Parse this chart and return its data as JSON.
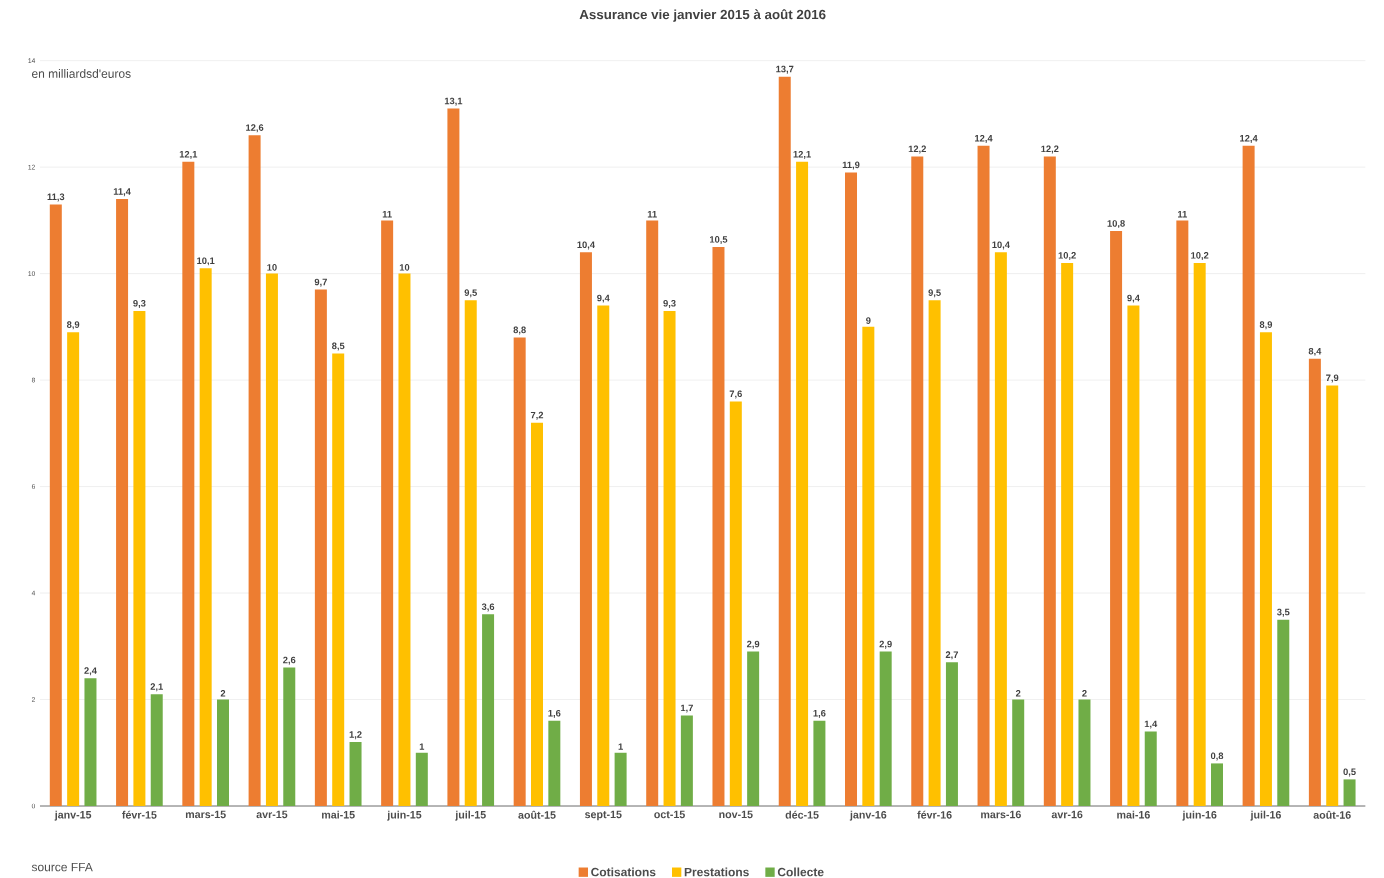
{
  "chart_data": {
    "type": "bar",
    "title": "Assurance vie janvier 2015  à août 2016",
    "annotations": [
      "en milliardsd'euros",
      "source FFA"
    ],
    "categories": [
      "janv-15",
      "févr-15",
      "mars-15",
      "avr-15",
      "mai-15",
      "juin-15",
      "juil-15",
      "août-15",
      "sept-15",
      "oct-15",
      "nov-15",
      "déc-15",
      "janv-16",
      "févr-16",
      "mars-16",
      "avr-16",
      "mai-16",
      "juin-16",
      "juil-16",
      "août-16"
    ],
    "series": [
      {
        "name": "Cotisations",
        "color": "#ed7d31",
        "values": [
          11.3,
          11.4,
          12.1,
          12.6,
          9.7,
          11,
          13.1,
          8.8,
          10.4,
          11,
          10.5,
          13.7,
          11.9,
          12.2,
          12.4,
          12.2,
          10.8,
          11,
          12.4,
          8.4
        ],
        "value_labels": [
          "11,3",
          "11,4",
          "12,1",
          "12,6",
          "9,7",
          "11",
          "13,1",
          "8,8",
          "10,4",
          "11",
          "10,5",
          "13,7",
          "11,9",
          "12,2",
          "12,4",
          "12,2",
          "10,8",
          "11",
          "12,4",
          "8,4"
        ]
      },
      {
        "name": "Prestations",
        "color": "#ffc000",
        "values": [
          8.9,
          9.3,
          10.1,
          10,
          8.5,
          10,
          9.5,
          7.2,
          9.4,
          9.3,
          7.6,
          12.1,
          9,
          9.5,
          10.4,
          10.2,
          9.4,
          10.2,
          8.9,
          7.9
        ],
        "value_labels": [
          "8,9",
          "9,3",
          "10,1",
          "10",
          "8,5",
          "10",
          "9,5",
          "7,2",
          "9,4",
          "9,3",
          "7,6",
          "12,1",
          "9",
          "9,5",
          "10,4",
          "10,2",
          "9,4",
          "10,2",
          "8,9",
          "7,9"
        ]
      },
      {
        "name": "Collecte",
        "color": "#70ad47",
        "values": [
          2.4,
          2.1,
          2,
          2.6,
          1.2,
          1,
          3.6,
          1.6,
          1,
          1.7,
          2.9,
          1.6,
          2.9,
          2.7,
          2,
          2,
          1.4,
          0.8,
          3.5,
          0.5
        ],
        "value_labels": [
          "2,4",
          "2,1",
          "2",
          "2,6",
          "1,2",
          "1",
          "3,6",
          "1,6",
          "1",
          "1,7",
          "2,9",
          "1,6",
          "2,9",
          "2,7",
          "2",
          "2",
          "1,4",
          "0,8",
          "3,5",
          "0,5"
        ]
      }
    ],
    "ylim": [
      0,
      14
    ],
    "yticks": [
      0,
      2,
      4,
      6,
      8,
      10,
      12,
      14
    ],
    "grid": "y",
    "legend": "bottom"
  }
}
